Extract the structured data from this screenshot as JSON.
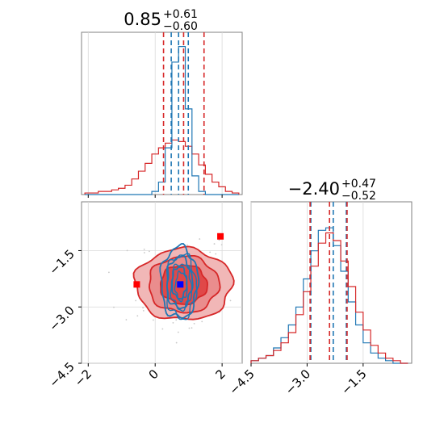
{
  "colors": {
    "red": "#d62728",
    "blue": "#1f77b4",
    "marker_blue": "#0000ff",
    "marker_red": "#ff0000",
    "grid": "#d9d9d9"
  },
  "chart_data": {
    "type": "corner",
    "parameters": [
      {
        "title_value": "0.85",
        "title_upper": "+0.61",
        "title_lower": "−0.60",
        "x_range": [
          -2.2,
          2.6
        ],
        "blue_quantiles": [
          0.48,
          0.7,
          0.99
        ],
        "red_quantiles": [
          0.25,
          0.85,
          1.46
        ]
      },
      {
        "title_value": "−2.40",
        "title_upper": "+0.47",
        "title_lower": "−0.52",
        "range": [
          -4.5,
          -0.2
        ],
        "blue_quantiles": [
          -2.9,
          -2.3,
          -1.95
        ],
        "red_quantiles": [
          -2.92,
          -2.4,
          -1.93
        ]
      }
    ],
    "x_ticks": [
      {
        "value": -2,
        "label": "−2"
      },
      {
        "value": 0,
        "label": "0"
      },
      {
        "value": 2,
        "label": "2"
      }
    ],
    "y_ticks": [
      {
        "value": -1.5,
        "label": "−1.5"
      },
      {
        "value": -3.0,
        "label": "−3.0"
      },
      {
        "value": -4.5,
        "label": "−4.5"
      }
    ],
    "hist1_bins": [
      -2.0,
      -1.8,
      -1.6,
      -1.4,
      -1.2,
      -1.0,
      -0.8,
      -0.6,
      -0.4,
      -0.2,
      0.0,
      0.2,
      0.4,
      0.6,
      0.8,
      1.0,
      1.2,
      1.4,
      1.6,
      1.8,
      2.0,
      2.2,
      2.4
    ],
    "hist1_red": [
      1,
      1,
      2,
      2,
      3,
      4,
      6,
      10,
      15,
      20,
      26,
      30,
      33,
      35,
      34,
      31,
      26,
      19,
      13,
      8,
      5,
      2,
      1
    ],
    "hist1_blue": [
      0,
      0,
      0,
      0,
      0,
      0,
      0,
      0,
      0,
      0,
      2,
      8,
      30,
      85,
      95,
      55,
      12,
      2,
      0,
      0,
      0,
      0,
      0
    ],
    "hist1_ymax": 100,
    "hist2_bins": [
      -4.4,
      -4.2,
      -4.0,
      -3.8,
      -3.6,
      -3.4,
      -3.2,
      -3.0,
      -2.8,
      -2.6,
      -2.4,
      -2.2,
      -2.0,
      -1.8,
      -1.6,
      -1.4,
      -1.2,
      -1.0,
      -0.8,
      -0.6,
      -0.4
    ],
    "hist2_blue": [
      1,
      2,
      3,
      6,
      10,
      15,
      22,
      33,
      44,
      52,
      53,
      46,
      36,
      24,
      15,
      8,
      4,
      2,
      1,
      0,
      0
    ],
    "hist2_red": [
      1,
      2,
      3,
      5,
      8,
      12,
      19,
      28,
      38,
      47,
      51,
      48,
      40,
      30,
      20,
      13,
      7,
      4,
      2,
      1,
      0
    ],
    "hist2_ymax": 60,
    "scatter_markers": [
      {
        "x": 0.75,
        "y": -2.4,
        "color": "blue"
      },
      {
        "x": 1.95,
        "y": -1.12,
        "color": "red"
      },
      {
        "x": -0.55,
        "y": -2.4,
        "color": "red"
      }
    ],
    "red_contour_levels": [
      {
        "rx": 1.45,
        "ry": 0.95,
        "fill": "#f1b7b7"
      },
      {
        "rx": 1.05,
        "ry": 0.75,
        "fill": "#ea8d8d"
      },
      {
        "rx": 0.7,
        "ry": 0.52,
        "fill": "#e04848"
      }
    ],
    "blue_contour_levels": [
      {
        "rx": 0.55,
        "ry": 0.95
      },
      {
        "rx": 0.38,
        "ry": 0.68
      },
      {
        "rx": 0.22,
        "ry": 0.42
      }
    ]
  }
}
